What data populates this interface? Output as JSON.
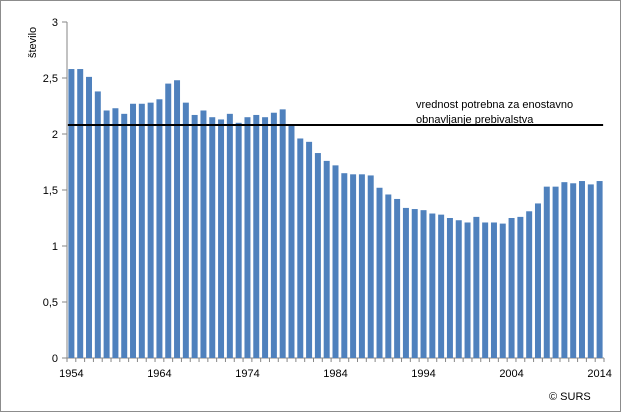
{
  "chart_data": {
    "type": "bar",
    "ylabel": "število",
    "xlabel": "",
    "title": "",
    "ylim": [
      0,
      3
    ],
    "y_ticks": [
      "0",
      "0,5",
      "1",
      "1,5",
      "2",
      "2,5",
      "3"
    ],
    "x_tick_labels": [
      "1954",
      "1964",
      "1974",
      "1984",
      "1994",
      "2004",
      "2014"
    ],
    "x": [
      1954,
      1955,
      1956,
      1957,
      1958,
      1959,
      1960,
      1961,
      1962,
      1963,
      1964,
      1965,
      1966,
      1967,
      1968,
      1969,
      1970,
      1971,
      1972,
      1973,
      1974,
      1975,
      1976,
      1977,
      1978,
      1979,
      1980,
      1981,
      1982,
      1983,
      1984,
      1985,
      1986,
      1987,
      1988,
      1989,
      1990,
      1991,
      1992,
      1993,
      1994,
      1995,
      1996,
      1997,
      1998,
      1999,
      2000,
      2001,
      2002,
      2003,
      2004,
      2005,
      2006,
      2007,
      2008,
      2009,
      2010,
      2011,
      2012,
      2013,
      2014
    ],
    "values": [
      2.58,
      2.58,
      2.51,
      2.38,
      2.21,
      2.23,
      2.18,
      2.27,
      2.27,
      2.28,
      2.31,
      2.45,
      2.48,
      2.28,
      2.17,
      2.21,
      2.15,
      2.13,
      2.18,
      2.1,
      2.15,
      2.17,
      2.15,
      2.19,
      2.22,
      2.08,
      1.96,
      1.93,
      1.83,
      1.76,
      1.72,
      1.65,
      1.64,
      1.64,
      1.63,
      1.52,
      1.46,
      1.42,
      1.34,
      1.33,
      1.32,
      1.29,
      1.28,
      1.25,
      1.23,
      1.21,
      1.26,
      1.21,
      1.21,
      1.2,
      1.25,
      1.26,
      1.31,
      1.38,
      1.53,
      1.53,
      1.57,
      1.56,
      1.58,
      1.55,
      1.58
    ],
    "reference_line": {
      "value": 2.08,
      "label_line1": "vrednost potrebna za enostavno",
      "label_line2": "obnavljanje prebivalstva"
    },
    "grid": false,
    "legend": "none",
    "bar_color": "#4f81bd",
    "credit": "© SURS"
  }
}
